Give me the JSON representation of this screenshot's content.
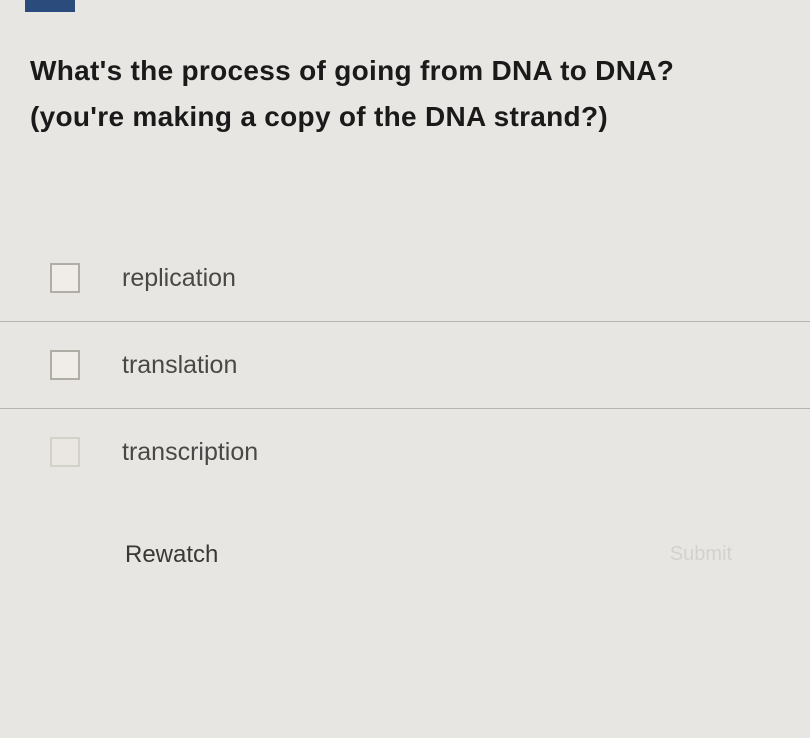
{
  "question": {
    "text": "What's the process of going from DNA to DNA? (you're making a copy of the DNA strand?)"
  },
  "options": [
    {
      "label": "replication",
      "checked": false
    },
    {
      "label": "translation",
      "checked": false
    },
    {
      "label": "transcription",
      "checked": false
    }
  ],
  "actions": {
    "rewatch_label": "Rewatch",
    "submit_label": "Submit"
  },
  "colors": {
    "background": "#e8e6e3",
    "header_marker": "#2a4b7c",
    "text_primary": "#1a1a1a",
    "text_secondary": "#4a4846",
    "border": "#b8b4ae",
    "checkbox_border": "#b0aca6"
  }
}
